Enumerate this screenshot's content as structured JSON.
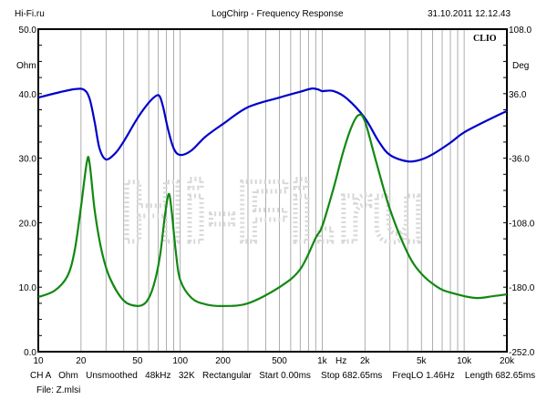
{
  "header": {
    "left": "Hi-Fi.ru",
    "title": "LogChirp - Frequency Response",
    "datetime": "31.10.2011 12.12.43"
  },
  "logo": "CLIO",
  "watermark": "Hi-Fi.ru",
  "footer": {
    "settings": "CH A   Ohm   Unsmoothed   48kHz   32K   Rectangular   Start 0.00ms    Stop 682.65ms    FreqLO 1.46Hz    Length 682.65ms",
    "file": "File: Z.mlsi"
  },
  "chart_data": {
    "type": "line",
    "title": "LogChirp - Frequency Response",
    "x_scale": "log",
    "xlim": [
      10,
      20000
    ],
    "xlabel": "Hz",
    "x_ticks": [
      10,
      20,
      50,
      100,
      200,
      500,
      1000,
      2000,
      5000,
      10000,
      20000
    ],
    "x_tick_labels": [
      "10",
      "20",
      "50",
      "100",
      "200",
      "500",
      "1k",
      "2k",
      "5k",
      "10k",
      "20k"
    ],
    "ylabel_left": "Ohm",
    "ylim_left": [
      0,
      50
    ],
    "y_left_tick_labels": [
      "0.0",
      "10.0",
      "20.0",
      "30.0",
      "40.0",
      "50.0"
    ],
    "ylabel_right": "Deg",
    "ylim_right": [
      -252,
      108
    ],
    "y_right_tick_labels": [
      "-252.0",
      "-180.0",
      "-108.0",
      "-36.0",
      "36.0",
      "108.0"
    ],
    "grid": "vertical",
    "series": [
      {
        "axis": "left",
        "color": "#0000cc",
        "points": [
          [
            10,
            39.4
          ],
          [
            14,
            40.2
          ],
          [
            18,
            40.7
          ],
          [
            21,
            40.6
          ],
          [
            23,
            39.2
          ],
          [
            25,
            35.5
          ],
          [
            27,
            31.5
          ],
          [
            30,
            29.8
          ],
          [
            35,
            30.8
          ],
          [
            40,
            32.6
          ],
          [
            50,
            36.2
          ],
          [
            60,
            38.6
          ],
          [
            68,
            39.7
          ],
          [
            72,
            39.5
          ],
          [
            76,
            37.8
          ],
          [
            82,
            34.5
          ],
          [
            90,
            31.5
          ],
          [
            100,
            30.5
          ],
          [
            120,
            31.2
          ],
          [
            150,
            33.3
          ],
          [
            200,
            35.3
          ],
          [
            300,
            37.9
          ],
          [
            500,
            39.4
          ],
          [
            700,
            40.3
          ],
          [
            850,
            40.8
          ],
          [
            950,
            40.6
          ],
          [
            1000,
            40.4
          ],
          [
            1200,
            40.4
          ],
          [
            1500,
            39.2
          ],
          [
            2000,
            36.2
          ],
          [
            2500,
            32.6
          ],
          [
            3000,
            30.5
          ],
          [
            4000,
            29.5
          ],
          [
            5000,
            29.8
          ],
          [
            6000,
            30.6
          ],
          [
            8000,
            32.4
          ],
          [
            10000,
            34.0
          ],
          [
            15000,
            36.0
          ],
          [
            20000,
            37.3
          ]
        ]
      },
      {
        "axis": "right",
        "color": "#118811",
        "points": [
          [
            10,
            -191
          ],
          [
            13,
            -184
          ],
          [
            16,
            -168
          ],
          [
            18,
            -140
          ],
          [
            20,
            -90
          ],
          [
            22,
            -40
          ],
          [
            23,
            -42
          ],
          [
            25,
            -95
          ],
          [
            28,
            -140
          ],
          [
            32,
            -170
          ],
          [
            40,
            -195
          ],
          [
            50,
            -201
          ],
          [
            58,
            -196
          ],
          [
            65,
            -178
          ],
          [
            72,
            -145
          ],
          [
            78,
            -100
          ],
          [
            83,
            -76
          ],
          [
            87,
            -95
          ],
          [
            93,
            -140
          ],
          [
            100,
            -172
          ],
          [
            120,
            -192
          ],
          [
            150,
            -199
          ],
          [
            200,
            -201
          ],
          [
            300,
            -198
          ],
          [
            500,
            -180
          ],
          [
            700,
            -160
          ],
          [
            900,
            -125
          ],
          [
            1000,
            -112
          ],
          [
            1200,
            -70
          ],
          [
            1400,
            -30
          ],
          [
            1600,
            -2
          ],
          [
            1800,
            12
          ],
          [
            2000,
            5
          ],
          [
            2400,
            -40
          ],
          [
            3000,
            -93
          ],
          [
            4000,
            -142
          ],
          [
            5000,
            -165
          ],
          [
            6500,
            -180
          ],
          [
            8000,
            -186
          ],
          [
            12000,
            -192
          ],
          [
            16000,
            -190
          ],
          [
            20000,
            -188
          ]
        ]
      }
    ]
  }
}
